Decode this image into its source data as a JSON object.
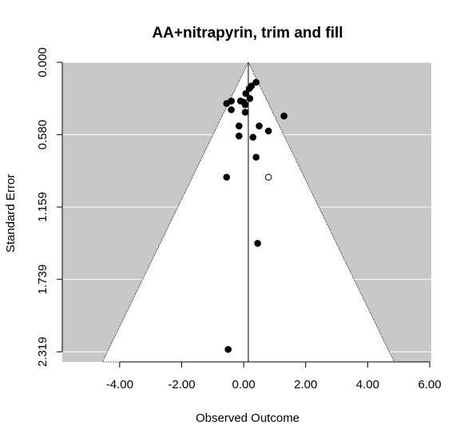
{
  "chart_data": {
    "type": "scatter",
    "title": "AA+nitrapyrin, trim and fill",
    "xlabel": "Observed Outcome",
    "ylabel": "Standard Error",
    "xlim": [
      -5.85,
      6.05
    ],
    "ylim": [
      2.4,
      0.0
    ],
    "x_ticks": [
      "-4.00",
      "-2.00",
      "0.00",
      "2.00",
      "4.00",
      "6.00"
    ],
    "y_ticks": [
      "0.000",
      "0.580",
      "1.159",
      "1.739",
      "2.319"
    ],
    "pooled_estimate": 0.15,
    "funnel_z": 1.96,
    "grid": true,
    "colors": {
      "background": "#c8c8c8",
      "funnel": "#ffffff",
      "points": "#000000",
      "imputed": "#ffffff"
    },
    "series": [
      {
        "points": [
          {
            "x": 0.4,
            "y": 0.16
          },
          {
            "x": 0.25,
            "y": 0.19
          },
          {
            "x": 0.18,
            "y": 0.21
          },
          {
            "x": 0.07,
            "y": 0.25
          },
          {
            "x": 0.2,
            "y": 0.29
          },
          {
            "x": -0.4,
            "y": 0.31
          },
          {
            "x": -0.1,
            "y": 0.31
          },
          {
            "x": 0.0,
            "y": 0.32
          },
          {
            "x": -0.55,
            "y": 0.33
          },
          {
            "x": 0.05,
            "y": 0.34
          },
          {
            "x": -0.4,
            "y": 0.38
          },
          {
            "x": 0.05,
            "y": 0.4
          },
          {
            "x": 1.3,
            "y": 0.43
          },
          {
            "x": -0.15,
            "y": 0.51
          },
          {
            "x": 0.5,
            "y": 0.51
          },
          {
            "x": 0.8,
            "y": 0.55
          },
          {
            "x": -0.15,
            "y": 0.59
          },
          {
            "x": 0.3,
            "y": 0.6
          },
          {
            "x": 0.4,
            "y": 0.76
          },
          {
            "x": -0.55,
            "y": 0.92
          },
          {
            "x": 0.45,
            "y": 1.45
          },
          {
            "x": -0.5,
            "y": 2.3
          }
        ]
      },
      {
        "imputed": true,
        "points": [
          {
            "x": 0.8,
            "y": 0.92
          }
        ]
      }
    ]
  }
}
